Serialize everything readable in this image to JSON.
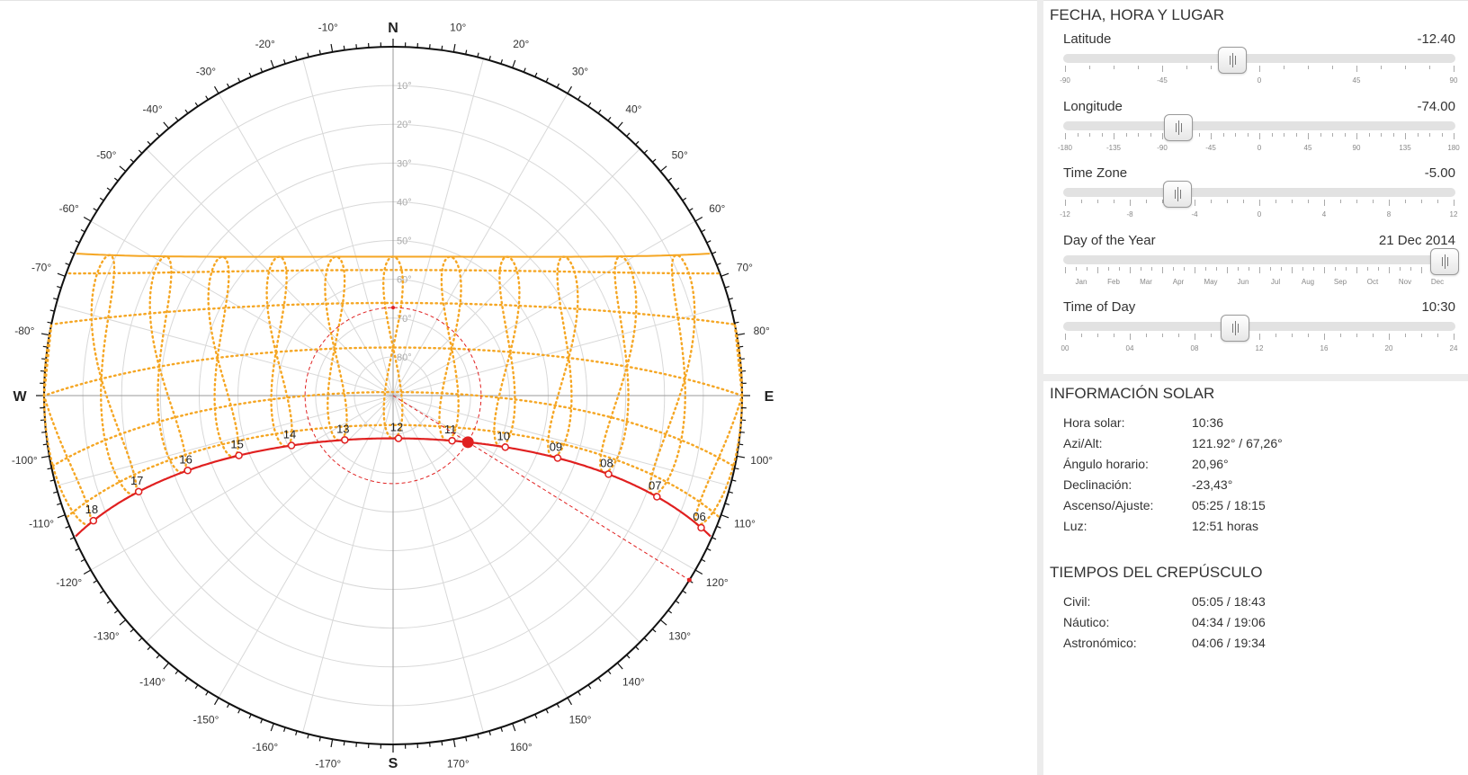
{
  "chart": {
    "latitude": -12.4,
    "sun_azimuth": 121.92,
    "sun_altitude": 67.26,
    "cardinals": {
      "north": "N",
      "south": "S",
      "east": "E",
      "west": "W"
    },
    "azimuth_labels": [
      "10°",
      "20°",
      "30°",
      "40°",
      "50°",
      "60°",
      "70°",
      "80°",
      "100°",
      "110°",
      "120°",
      "130°",
      "140°",
      "150°",
      "160°",
      "170°",
      "-10°",
      "-20°",
      "-30°",
      "-40°",
      "-50°",
      "-60°",
      "-70°",
      "-80°",
      "-100°",
      "-110°",
      "-120°",
      "-130°",
      "-140°",
      "-150°",
      "-160°",
      "-170°"
    ],
    "altitude_labels": [
      "10°",
      "20°",
      "30°",
      "40°",
      "50°",
      "60°",
      "70°",
      "80°"
    ],
    "hour_labels": [
      "06",
      "07",
      "08",
      "09",
      "10",
      "11",
      "12",
      "13",
      "14",
      "15",
      "16",
      "17",
      "18"
    ],
    "colors": {
      "sun_path": "#e02020",
      "analemma": "#f5a623",
      "solstice": "#f5a623",
      "grid": "#d8d8d8",
      "ring": "#111111"
    }
  },
  "panel": {
    "location_title": "FECHA, HORA Y LUGAR",
    "sliders": [
      {
        "id": "latitude",
        "label": "Latitude",
        "value": "-12.40",
        "fraction": 0.431,
        "ticks": [
          "-90",
          "-45",
          "0",
          "45",
          "90"
        ]
      },
      {
        "id": "longitude",
        "label": "Longitude",
        "value": "-74.00",
        "fraction": 0.294,
        "ticks": [
          "-180",
          "-135",
          "-90",
          "-45",
          "0",
          "45",
          "90",
          "135",
          "180"
        ]
      },
      {
        "id": "time-zone",
        "label": "Time Zone",
        "value": "-5.00",
        "fraction": 0.292,
        "ticks": [
          "-12",
          "-8",
          "-4",
          "0",
          "4",
          "8",
          "12"
        ]
      },
      {
        "id": "day-of-year",
        "label": "Day of the Year",
        "value": "21 Dec 2014",
        "fraction": 0.973,
        "ticks": [
          "Jan",
          "Feb",
          "Mar",
          "Apr",
          "May",
          "Jun",
          "Jul",
          "Aug",
          "Sep",
          "Oct",
          "Nov",
          "Dec"
        ]
      },
      {
        "id": "time-of-day",
        "label": "Time of Day",
        "value": "10:30",
        "fraction": 0.438,
        "ticks": [
          "00",
          "04",
          "08",
          "12",
          "16",
          "20",
          "24"
        ]
      }
    ],
    "solar_title": "INFORMACIÓN SOLAR",
    "solar_info": [
      {
        "label": "Hora solar:",
        "value": "10:36"
      },
      {
        "label": "Azi/Alt:",
        "value": "121.92° / 67,26°"
      },
      {
        "label": "Ángulo horario:",
        "value": "20,96°"
      },
      {
        "label": "Declinación:",
        "value": "-23,43°"
      },
      {
        "label": "Ascenso/Ajuste:",
        "value": "05:25 / 18:15"
      },
      {
        "label": "Luz:",
        "value": "12:51 horas"
      }
    ],
    "twilight_title": "TIEMPOS DEL CREPÚSCULO",
    "twilight_info": [
      {
        "label": "Civil:",
        "value": "05:05 / 18:43"
      },
      {
        "label": "Náutico:",
        "value": "04:34 / 19:06"
      },
      {
        "label": "Astronómico:",
        "value": "04:06 / 19:34"
      }
    ]
  }
}
